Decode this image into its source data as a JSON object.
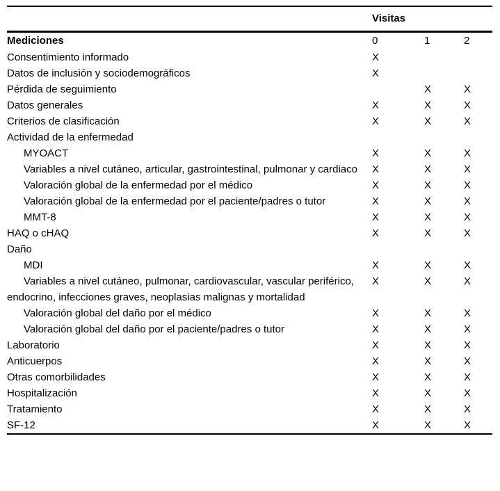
{
  "page": {
    "background_color": "#ffffff",
    "text_color": "#000000",
    "rule_color": "#000000"
  },
  "table": {
    "group_header": "Visitas",
    "label_header": "Mediciones",
    "columns": [
      "0",
      "1",
      "2"
    ],
    "mark_glyph": "X",
    "rows": [
      {
        "label": "Consentimiento informado",
        "indent": 0,
        "marks": [
          "X",
          "",
          ""
        ]
      },
      {
        "label": "Datos de inclusión y sociodemográficos",
        "indent": 0,
        "marks": [
          "X",
          "",
          ""
        ]
      },
      {
        "label": "Pérdida de seguimiento",
        "indent": 0,
        "marks": [
          "",
          "X",
          "X"
        ]
      },
      {
        "label": "Datos generales",
        "indent": 0,
        "marks": [
          "X",
          "X",
          "X"
        ]
      },
      {
        "label": "Criterios de clasificación",
        "indent": 0,
        "marks": [
          "X",
          "X",
          "X"
        ]
      },
      {
        "label": "Actividad de la enfermedad",
        "indent": 0,
        "marks": [
          "",
          "",
          ""
        ]
      },
      {
        "label": "MYOACT",
        "indent": 1,
        "marks": [
          "X",
          "X",
          "X"
        ]
      },
      {
        "label": "Variables a nivel cutáneo, articular, gastrointestinal, pulmonar y cardiaco",
        "indent": 1,
        "marks": [
          "X",
          "X",
          "X"
        ]
      },
      {
        "label": "Valoración global de la enfermedad por el médico",
        "indent": 1,
        "marks": [
          "X",
          "X",
          "X"
        ]
      },
      {
        "label": "Valoración global de la enfermedad por el paciente/padres o tutor",
        "indent": 1,
        "marks": [
          "X",
          "X",
          "X"
        ]
      },
      {
        "label": "MMT-8",
        "indent": 1,
        "marks": [
          "X",
          "X",
          "X"
        ]
      },
      {
        "label": "HAQ o cHAQ",
        "indent": 0,
        "marks": [
          "X",
          "X",
          "X"
        ]
      },
      {
        "label": "Daño",
        "indent": 0,
        "marks": [
          "",
          "",
          ""
        ]
      },
      {
        "label": "MDI",
        "indent": 1,
        "marks": [
          "X",
          "X",
          "X"
        ]
      },
      {
        "label": "Variables a nivel cutáneo, pulmonar, cardiovascular, vascular periférico, endocrino, infecciones graves, neoplasias malignas y mortalidad",
        "indent": 1,
        "marks": [
          "X",
          "X",
          "X"
        ]
      },
      {
        "label": "Valoración global del daño por el médico",
        "indent": 1,
        "marks": [
          "X",
          "X",
          "X"
        ]
      },
      {
        "label": "Valoración global del daño por el paciente/padres o tutor",
        "indent": 1,
        "marks": [
          "X",
          "X",
          "X"
        ]
      },
      {
        "label": "Laboratorio",
        "indent": 0,
        "marks": [
          "X",
          "X",
          "X"
        ]
      },
      {
        "label": "Anticuerpos",
        "indent": 0,
        "marks": [
          "X",
          "X",
          "X"
        ]
      },
      {
        "label": "Otras comorbilidades",
        "indent": 0,
        "marks": [
          "X",
          "X",
          "X"
        ]
      },
      {
        "label": "Hospitalización",
        "indent": 0,
        "marks": [
          "X",
          "X",
          "X"
        ]
      },
      {
        "label": "Tratamiento",
        "indent": 0,
        "marks": [
          "X",
          "X",
          "X"
        ]
      },
      {
        "label": "SF-12",
        "indent": 0,
        "marks": [
          "X",
          "X",
          "X"
        ]
      }
    ]
  }
}
